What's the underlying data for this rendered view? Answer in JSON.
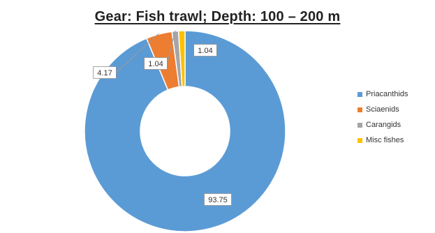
{
  "chart_data": {
    "type": "pie",
    "variant": "donut",
    "title": "Gear: Fish trawl; Depth: 100 – 200 m",
    "categories": [
      "Priacanthids",
      "Sciaenids",
      "Carangids",
      "Misc fishes"
    ],
    "values": [
      93.75,
      4.17,
      1.04,
      1.04
    ],
    "data_labels": [
      "93.75",
      "4.17",
      "1.04",
      "1.04"
    ],
    "colors": [
      "#5b9bd5",
      "#ed7d31",
      "#a5a5a5",
      "#ffc000"
    ],
    "legend_position": "right"
  }
}
